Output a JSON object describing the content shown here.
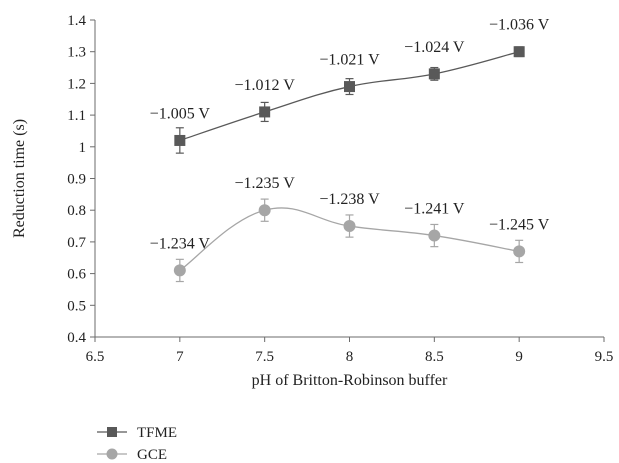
{
  "chart_data": {
    "type": "line",
    "xlabel": "pH of Britton-Robinson buffer",
    "ylabel": "Reduction time (s)",
    "xlim": [
      6.5,
      9.5
    ],
    "ylim": [
      0.4,
      1.4
    ],
    "x_ticks": [
      "6.5",
      "7",
      "7.5",
      "8",
      "8.5",
      "9",
      "9.5"
    ],
    "y_ticks": [
      "0.4",
      "0.5",
      "0.6",
      "0.7",
      "0.8",
      "0.9",
      "1",
      "1.1",
      "1.2",
      "1.3",
      "1.4"
    ],
    "grid": false,
    "legend_position": "bottom-left",
    "series": [
      {
        "name": "TFME",
        "marker": "square",
        "color": "#595959",
        "x": [
          7,
          7.5,
          8,
          8.5,
          9
        ],
        "y": [
          1.02,
          1.11,
          1.19,
          1.23,
          1.3
        ],
        "error": [
          0.04,
          0.03,
          0.025,
          0.02,
          0.015
        ],
        "point_labels": [
          "−1.005 V",
          "−1.012 V",
          "−1.021 V",
          "−1.024 V",
          "−1.036 V"
        ]
      },
      {
        "name": "GCE",
        "marker": "circle",
        "color": "#a6a6a6",
        "x": [
          7,
          7.5,
          8,
          8.5,
          9
        ],
        "y": [
          0.61,
          0.8,
          0.75,
          0.72,
          0.67
        ],
        "error": [
          0.035,
          0.035,
          0.035,
          0.035,
          0.035
        ],
        "point_labels": [
          "−1.234 V",
          "−1.235 V",
          "−1.238 V",
          "−1.241 V",
          "−1.245 V"
        ]
      }
    ]
  }
}
